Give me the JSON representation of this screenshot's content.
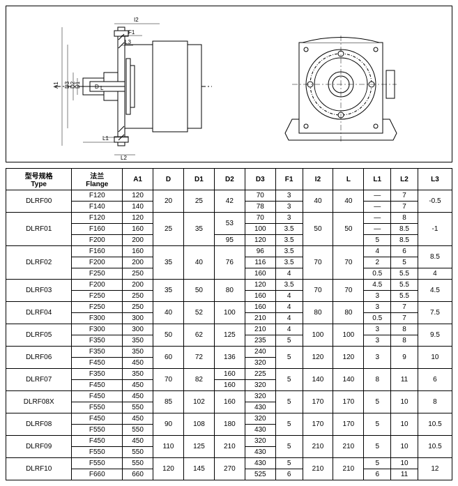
{
  "headers": [
    "型号规格\nType",
    "法兰\nFlange",
    "A1",
    "D",
    "D1",
    "D2",
    "D3",
    "F1",
    "I2",
    "L",
    "L1",
    "L2",
    "L3"
  ],
  "diagram_labels": [
    "A1",
    "D",
    "D1",
    "D2",
    "D3",
    "F1",
    "I2",
    "L",
    "L1",
    "L2",
    "L3"
  ],
  "rows": [
    {
      "type": "DLRF00",
      "flanges": [
        {
          "f": "F120",
          "a1": "120",
          "d": "20",
          "d1": "25",
          "d2": "42",
          "d3": "70",
          "f1": "3",
          "i2": "40",
          "l": "40",
          "l1": "—",
          "l2": "7",
          "l3": "-0.5"
        },
        {
          "f": "F140",
          "a1": "140",
          "d": "",
          "d1": "",
          "d2": "",
          "d3": "78",
          "f1": "3",
          "i2": "",
          "l": "",
          "l1": "—",
          "l2": "7",
          "l3": ""
        }
      ]
    },
    {
      "type": "DLRF01",
      "flanges": [
        {
          "f": "F120",
          "a1": "120",
          "d": "25",
          "d1": "35",
          "d2": "53",
          "d3": "70",
          "f1": "3",
          "i2": "50",
          "l": "50",
          "l1": "—",
          "l2": "8",
          "l3": "-1"
        },
        {
          "f": "F160",
          "a1": "160",
          "d": "",
          "d1": "",
          "d2": "",
          "d3": "100",
          "f1": "3.5",
          "i2": "",
          "l": "",
          "l1": "—",
          "l2": "8.5",
          "l3": ""
        },
        {
          "f": "F200",
          "a1": "200",
          "d": "",
          "d1": "",
          "d2": "95",
          "d3": "120",
          "f1": "3.5",
          "i2": "",
          "l": "",
          "l1": "5",
          "l2": "8.5",
          "l3": ""
        }
      ]
    },
    {
      "type": "DLRF02",
      "flanges": [
        {
          "f": "F160",
          "a1": "160",
          "d": "35",
          "d1": "40",
          "d2": "76",
          "d3": "96",
          "f1": "3.5",
          "i2": "70",
          "l": "70",
          "l1": "4",
          "l2": "6",
          "l3": "8.5"
        },
        {
          "f": "F200",
          "a1": "200",
          "d": "",
          "d1": "",
          "d2": "",
          "d3": "116",
          "f1": "3.5",
          "i2": "",
          "l": "",
          "l1": "2",
          "l2": "5",
          "l3": ""
        },
        {
          "f": "F250",
          "a1": "250",
          "d": "",
          "d1": "",
          "d2": "",
          "d3": "160",
          "f1": "4",
          "i2": "",
          "l": "",
          "l1": "0.5",
          "l2": "5.5",
          "l3": "4"
        }
      ]
    },
    {
      "type": "DLRF03",
      "flanges": [
        {
          "f": "F200",
          "a1": "200",
          "d": "35",
          "d1": "50",
          "d2": "80",
          "d3": "120",
          "f1": "3.5",
          "i2": "70",
          "l": "70",
          "l1": "4.5",
          "l2": "5.5",
          "l3": "4.5"
        },
        {
          "f": "F250",
          "a1": "250",
          "d": "",
          "d1": "",
          "d2": "",
          "d3": "160",
          "f1": "4",
          "i2": "",
          "l": "",
          "l1": "3",
          "l2": "5.5",
          "l3": ""
        }
      ]
    },
    {
      "type": "DLRF04",
      "flanges": [
        {
          "f": "F250",
          "a1": "250",
          "d": "40",
          "d1": "52",
          "d2": "100",
          "d3": "160",
          "f1": "4",
          "i2": "80",
          "l": "80",
          "l1": "3",
          "l2": "7",
          "l3": "7.5"
        },
        {
          "f": "F300",
          "a1": "300",
          "d": "",
          "d1": "",
          "d2": "",
          "d3": "210",
          "f1": "4",
          "i2": "",
          "l": "",
          "l1": "0.5",
          "l2": "7",
          "l3": ""
        }
      ]
    },
    {
      "type": "DLRF05",
      "flanges": [
        {
          "f": "F300",
          "a1": "300",
          "d": "50",
          "d1": "62",
          "d2": "125",
          "d3": "210",
          "f1": "4",
          "i2": "100",
          "l": "100",
          "l1": "3",
          "l2": "8",
          "l3": "9.5"
        },
        {
          "f": "F350",
          "a1": "350",
          "d": "",
          "d1": "",
          "d2": "",
          "d3": "235",
          "f1": "5",
          "i2": "",
          "l": "",
          "l1": "3",
          "l2": "8",
          "l3": ""
        }
      ]
    },
    {
      "type": "DLRF06",
      "flanges": [
        {
          "f": "F350",
          "a1": "350",
          "d": "60",
          "d1": "72",
          "d2": "136",
          "d3": "240",
          "f1": "5",
          "i2": "120",
          "l": "120",
          "l1": "3",
          "l2": "9",
          "l3": "10"
        },
        {
          "f": "F450",
          "a1": "450",
          "d": "",
          "d1": "",
          "d2": "",
          "d3": "320",
          "f1": "",
          "i2": "",
          "l": "",
          "l1": "",
          "l2": "",
          "l3": ""
        }
      ]
    },
    {
      "type": "DLRF07",
      "flanges": [
        {
          "f": "F350",
          "a1": "350",
          "d": "70",
          "d1": "82",
          "d2": "160",
          "d3": "225",
          "f1": "5",
          "i2": "140",
          "l": "140",
          "l1": "8",
          "l2": "11",
          "l3": "6"
        },
        {
          "f": "F450",
          "a1": "450",
          "d": "",
          "d1": "",
          "d2": "160",
          "d3": "320",
          "f1": "",
          "i2": "",
          "l": "",
          "l1": "",
          "l2": "",
          "l3": ""
        }
      ]
    },
    {
      "type": "DLRF08X",
      "flanges": [
        {
          "f": "F450",
          "a1": "450",
          "d": "85",
          "d1": "102",
          "d2": "160",
          "d3": "320",
          "f1": "5",
          "i2": "170",
          "l": "170",
          "l1": "5",
          "l2": "10",
          "l3": "8"
        },
        {
          "f": "F550",
          "a1": "550",
          "d": "",
          "d1": "",
          "d2": "",
          "d3": "430",
          "f1": "",
          "i2": "",
          "l": "",
          "l1": "",
          "l2": "",
          "l3": ""
        }
      ]
    },
    {
      "type": "DLRF08",
      "flanges": [
        {
          "f": "F450",
          "a1": "450",
          "d": "90",
          "d1": "108",
          "d2": "180",
          "d3": "320",
          "f1": "5",
          "i2": "170",
          "l": "170",
          "l1": "5",
          "l2": "10",
          "l3": "10.5"
        },
        {
          "f": "F550",
          "a1": "550",
          "d": "",
          "d1": "",
          "d2": "",
          "d3": "430",
          "f1": "",
          "i2": "",
          "l": "",
          "l1": "",
          "l2": "",
          "l3": ""
        }
      ]
    },
    {
      "type": "DLRF09",
      "flanges": [
        {
          "f": "F450",
          "a1": "450",
          "d": "110",
          "d1": "125",
          "d2": "210",
          "d3": "320",
          "f1": "5",
          "i2": "210",
          "l": "210",
          "l1": "5",
          "l2": "10",
          "l3": "10.5"
        },
        {
          "f": "F550",
          "a1": "550",
          "d": "",
          "d1": "",
          "d2": "",
          "d3": "430",
          "f1": "",
          "i2": "",
          "l": "",
          "l1": "",
          "l2": "",
          "l3": ""
        }
      ]
    },
    {
      "type": "DLRF10",
      "flanges": [
        {
          "f": "F550",
          "a1": "550",
          "d": "120",
          "d1": "145",
          "d2": "270",
          "d3": "430",
          "f1": "5",
          "i2": "210",
          "l": "210",
          "l1": "5",
          "l2": "10",
          "l3": "12"
        },
        {
          "f": "F660",
          "a1": "660",
          "d": "",
          "d1": "",
          "d2": "",
          "d3": "525",
          "f1": "6",
          "i2": "",
          "l": "",
          "l1": "6",
          "l2": "11",
          "l3": ""
        }
      ]
    }
  ],
  "colors": {
    "border": "#000000",
    "bg": "#ffffff"
  }
}
